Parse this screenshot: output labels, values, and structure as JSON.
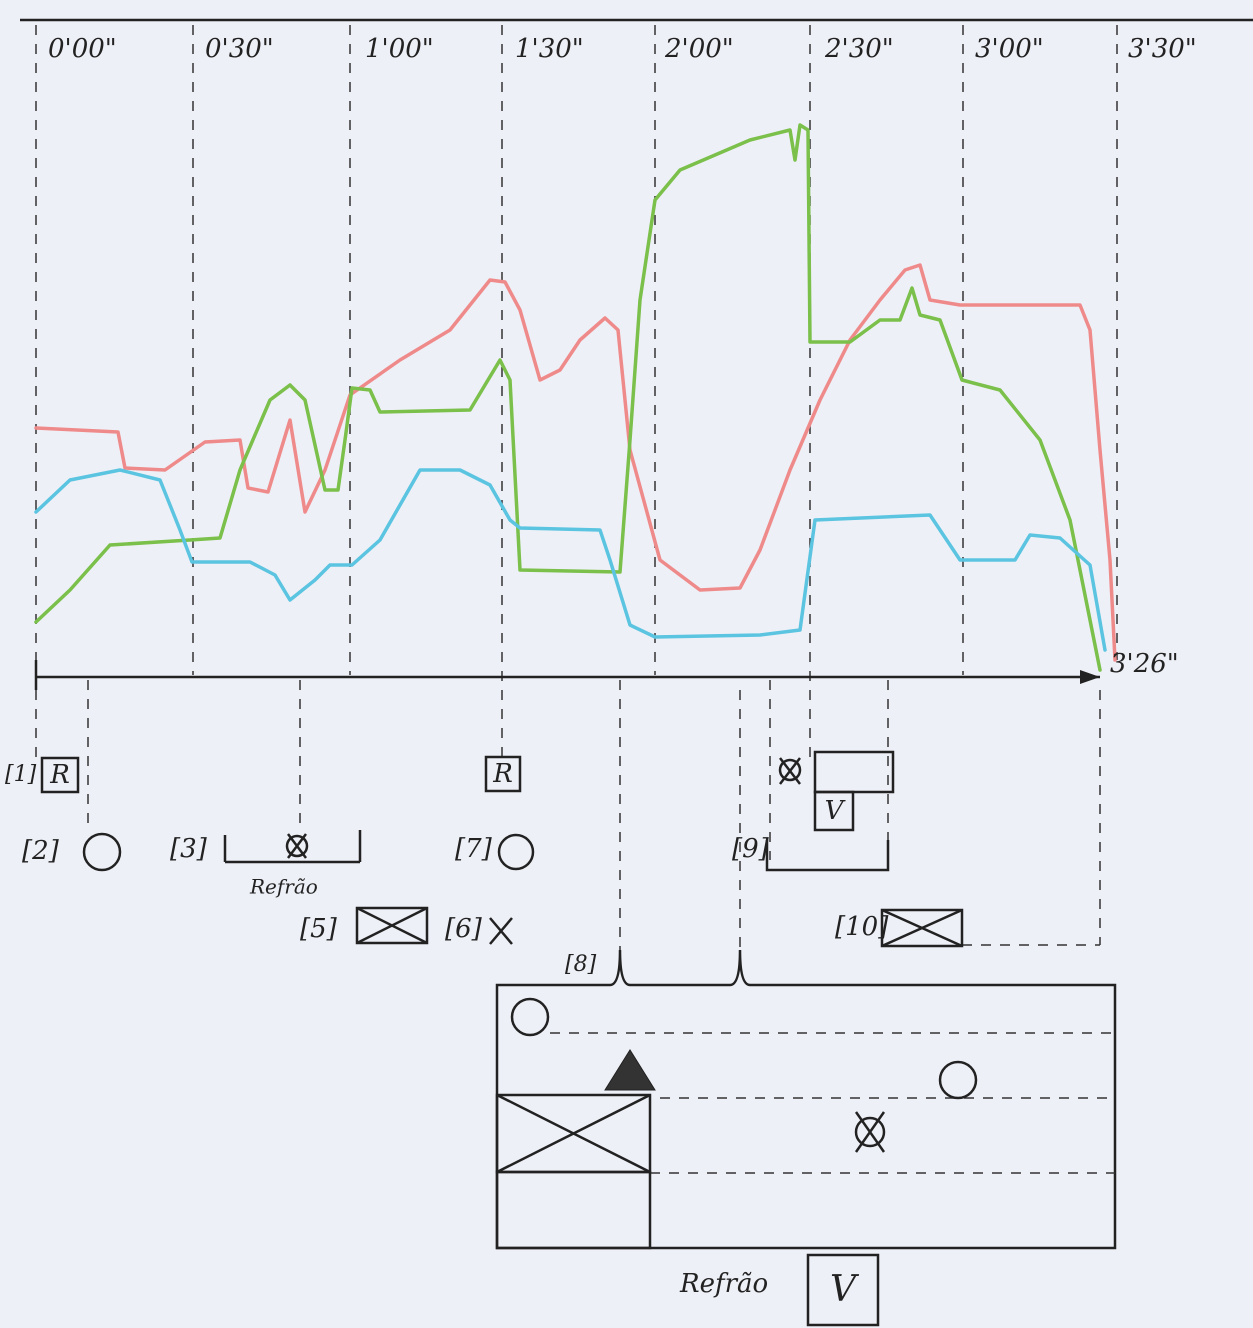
{
  "timeline": {
    "ticks": [
      "0'00\"",
      "0'30\"",
      "1'00\"",
      "1'30\"",
      "2'00\"",
      "2'30\"",
      "3'00\"",
      "3'30\""
    ],
    "end": "3'26\""
  },
  "markers": {
    "m1": "[1]",
    "m1_box": "R",
    "m2": "[2]",
    "m3": "[3]",
    "m3_note": "Refrão",
    "m5": "[5]",
    "m6": "[6]",
    "m7_box": "R",
    "m7": "[7]",
    "m8": "[8]",
    "m9": "[9]",
    "m9_box": "V",
    "m10": "[10]"
  },
  "footer": {
    "label": "Refrão",
    "box": "V"
  }
}
